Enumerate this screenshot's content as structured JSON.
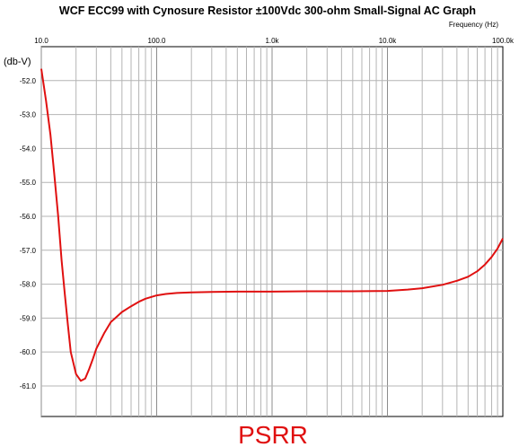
{
  "chart_data": {
    "type": "line",
    "title": "WCF ECC99 with Cynosure Resistor ±100Vdc 300-ohm Small-Signal AC Graph",
    "xlabel": "Frequency   (Hz)",
    "ylabel": "(db-V)",
    "caption": "PSRR",
    "x_scale": "log",
    "xlim": [
      10,
      100000
    ],
    "ylim": [
      -61.9,
      -51.0
    ],
    "grid": true,
    "x_ticks": [
      {
        "value": 10,
        "label": "10.0"
      },
      {
        "value": 100,
        "label": "100.0"
      },
      {
        "value": 1000,
        "label": "1.0k"
      },
      {
        "value": 10000,
        "label": "10.0k"
      },
      {
        "value": 100000,
        "label": "100.0k"
      }
    ],
    "y_ticks": [
      {
        "value": -52,
        "label": "-52.0"
      },
      {
        "value": -53,
        "label": "-53.0"
      },
      {
        "value": -54,
        "label": "-54.0"
      },
      {
        "value": -55,
        "label": "-55.0"
      },
      {
        "value": -56,
        "label": "-56.0"
      },
      {
        "value": -57,
        "label": "-57.0"
      },
      {
        "value": -58,
        "label": "-58.0"
      },
      {
        "value": -59,
        "label": "-59.0"
      },
      {
        "value": -60,
        "label": "-60.0"
      },
      {
        "value": -61,
        "label": "-61.0"
      }
    ],
    "series": [
      {
        "color": "#e01010",
        "x": [
          10,
          11,
          12,
          13,
          14,
          15,
          16,
          17,
          18,
          20,
          22,
          24,
          26,
          28,
          30,
          35,
          40,
          50,
          60,
          70,
          80,
          100,
          120,
          150,
          200,
          300,
          500,
          1000,
          2000,
          5000,
          10000,
          15000,
          20000,
          30000,
          40000,
          50000,
          60000,
          70000,
          80000,
          90000,
          100000
        ],
        "y": [
          -51.65,
          -52.6,
          -53.6,
          -54.8,
          -56.0,
          -57.3,
          -58.3,
          -59.2,
          -60.0,
          -60.65,
          -60.85,
          -60.78,
          -60.5,
          -60.2,
          -59.9,
          -59.45,
          -59.12,
          -58.82,
          -58.65,
          -58.52,
          -58.43,
          -58.33,
          -58.29,
          -58.26,
          -58.24,
          -58.23,
          -58.22,
          -58.22,
          -58.21,
          -58.21,
          -58.2,
          -58.16,
          -58.12,
          -58.02,
          -57.9,
          -57.78,
          -57.62,
          -57.42,
          -57.2,
          -56.95,
          -56.65
        ]
      }
    ]
  }
}
